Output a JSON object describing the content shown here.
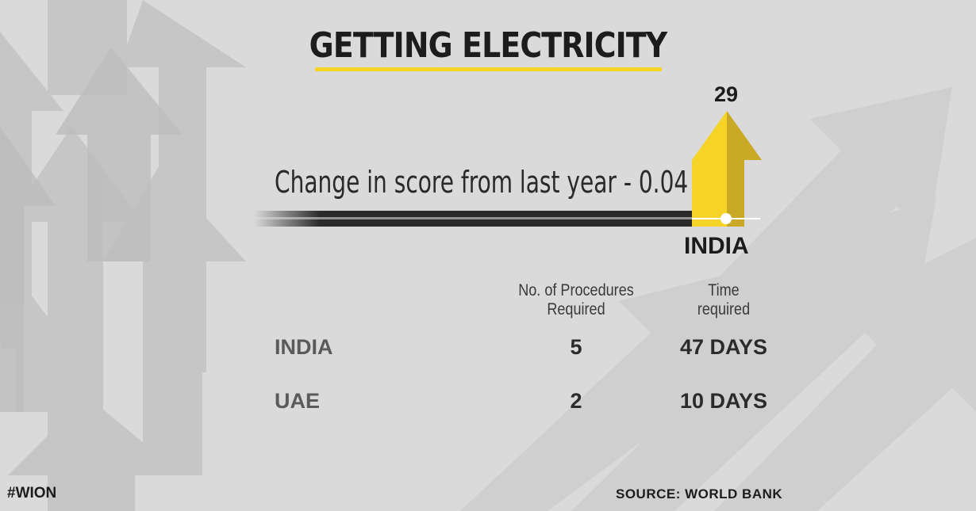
{
  "title": "GETTING ELECTRICITY",
  "rank_value": "29",
  "change_text": "Change in score from last year - 0.04",
  "highlight_country": "INDIA",
  "table": {
    "headers": [
      "No. of Procedures",
      "Required",
      "Time",
      "required"
    ],
    "rows": [
      {
        "country": "INDIA",
        "procedures": "5",
        "time": "47 DAYS"
      },
      {
        "country": "UAE",
        "procedures": "2",
        "time": "10 DAYS"
      }
    ]
  },
  "hashtag": "#WION",
  "source": "SOURCE: WORLD BANK",
  "colors": {
    "accent": "#f5d327",
    "accent_dark": "#c9a925",
    "background": "#dadada",
    "text": "#1c1c1c"
  },
  "icons": [
    "up-arrow-icon",
    "trend-arrow-icon"
  ]
}
